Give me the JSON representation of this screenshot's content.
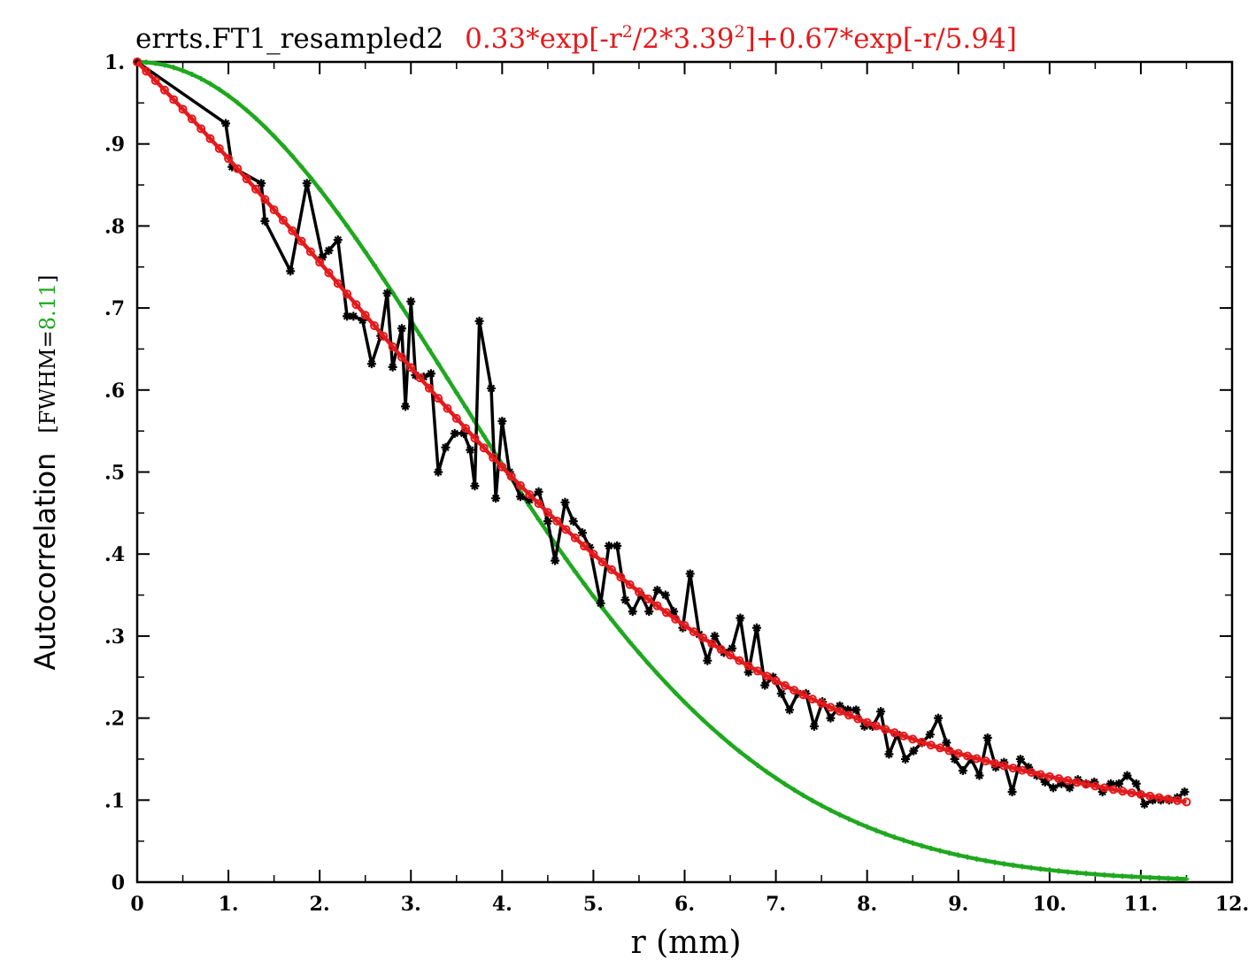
{
  "title": {
    "name": "errts.FT1_resampled2",
    "formula_a": "0.33*exp[-r",
    "formula_sup1": "2",
    "formula_b": "/2*3.39",
    "formula_sup2": "2",
    "formula_c": "]+0.67*exp[-r/5.94]"
  },
  "ylabel": {
    "main": "Autocorrelation",
    "fwhm_open": "[FWHM=",
    "fwhm_value": "8.11",
    "fwhm_close": "]"
  },
  "xlabel": "r  (mm)",
  "colors": {
    "data": "#000000",
    "model": "#e41a1c",
    "gaussian": "#1fa81f",
    "axis": "#000000"
  },
  "chart_data": {
    "type": "line",
    "xlim": [
      0,
      12
    ],
    "ylim": [
      0,
      1
    ],
    "x_ticks": [
      {
        "v": 0,
        "label": "0"
      },
      {
        "v": 1,
        "label": "1."
      },
      {
        "v": 2,
        "label": "2."
      },
      {
        "v": 3,
        "label": "3."
      },
      {
        "v": 4,
        "label": "4."
      },
      {
        "v": 5,
        "label": "5."
      },
      {
        "v": 6,
        "label": "6."
      },
      {
        "v": 7,
        "label": "7."
      },
      {
        "v": 8,
        "label": "8."
      },
      {
        "v": 9,
        "label": "9."
      },
      {
        "v": 10,
        "label": "10."
      },
      {
        "v": 11,
        "label": "11."
      },
      {
        "v": 12,
        "label": "12."
      }
    ],
    "y_ticks": [
      {
        "v": 0,
        "label": "0"
      },
      {
        "v": 0.1,
        "label": ".1"
      },
      {
        "v": 0.2,
        "label": ".2"
      },
      {
        "v": 0.3,
        "label": ".3"
      },
      {
        "v": 0.4,
        "label": ".4"
      },
      {
        "v": 0.5,
        "label": ".5"
      },
      {
        "v": 0.6,
        "label": ".6"
      },
      {
        "v": 0.7,
        "label": ".7"
      },
      {
        "v": 0.8,
        "label": ".8"
      },
      {
        "v": 0.9,
        "label": ".9"
      },
      {
        "v": 1.0,
        "label": "1."
      }
    ],
    "grid": false,
    "series": [
      {
        "color": "#000000",
        "marker": "star",
        "x": [
          0,
          0.97,
          1.04,
          1.36,
          1.4,
          1.68,
          1.86,
          2.03,
          2.1,
          2.2,
          2.3,
          2.37,
          2.47,
          2.57,
          2.67,
          2.74,
          2.8,
          2.9,
          2.94,
          3.0,
          3.05,
          3.14,
          3.22,
          3.3,
          3.38,
          3.48,
          3.58,
          3.65,
          3.7,
          3.75,
          3.88,
          3.93,
          4.0,
          4.08,
          4.2,
          4.3,
          4.4,
          4.5,
          4.58,
          4.69,
          4.78,
          4.88,
          4.96,
          5.08,
          5.17,
          5.26,
          5.35,
          5.43,
          5.52,
          5.61,
          5.7,
          5.79,
          5.88,
          5.98,
          6.06,
          6.16,
          6.25,
          6.33,
          6.43,
          6.52,
          6.61,
          6.7,
          6.79,
          6.88,
          6.97,
          7.06,
          7.15,
          7.24,
          7.33,
          7.42,
          7.51,
          7.6,
          7.7,
          7.79,
          7.88,
          7.97,
          8.06,
          8.15,
          8.24,
          8.33,
          8.42,
          8.51,
          8.6,
          8.69,
          8.78,
          8.87,
          8.96,
          9.05,
          9.14,
          9.23,
          9.32,
          9.41,
          9.5,
          9.59,
          9.68,
          9.77,
          9.86,
          9.95,
          10.04,
          10.13,
          10.22,
          10.31,
          10.4,
          10.49,
          10.58,
          10.67,
          10.76,
          10.85,
          10.95,
          11.04,
          11.13,
          11.22,
          11.31,
          11.4,
          11.48
        ],
        "y": [
          1.0,
          0.925,
          0.872,
          0.852,
          0.806,
          0.745,
          0.852,
          0.762,
          0.77,
          0.783,
          0.69,
          0.69,
          0.685,
          0.632,
          0.666,
          0.718,
          0.628,
          0.675,
          0.58,
          0.708,
          0.618,
          0.616,
          0.62,
          0.5,
          0.53,
          0.547,
          0.547,
          0.527,
          0.483,
          0.684,
          0.602,
          0.468,
          0.562,
          0.5,
          0.47,
          0.466,
          0.476,
          0.44,
          0.392,
          0.463,
          0.44,
          0.426,
          0.408,
          0.34,
          0.41,
          0.41,
          0.344,
          0.33,
          0.35,
          0.33,
          0.356,
          0.35,
          0.33,
          0.31,
          0.376,
          0.302,
          0.27,
          0.3,
          0.28,
          0.285,
          0.322,
          0.256,
          0.31,
          0.24,
          0.25,
          0.23,
          0.21,
          0.23,
          0.23,
          0.19,
          0.22,
          0.2,
          0.215,
          0.21,
          0.21,
          0.19,
          0.19,
          0.208,
          0.156,
          0.18,
          0.15,
          0.16,
          0.17,
          0.18,
          0.2,
          0.17,
          0.15,
          0.136,
          0.15,
          0.13,
          0.176,
          0.14,
          0.146,
          0.11,
          0.15,
          0.14,
          0.13,
          0.122,
          0.115,
          0.12,
          0.115,
          0.125,
          0.12,
          0.122,
          0.11,
          0.12,
          0.12,
          0.13,
          0.12,
          0.095,
          0.1,
          0.1,
          0.1,
          0.103,
          0.11
        ]
      },
      {
        "color": "#e41a1c",
        "marker": "circle",
        "formula": {
          "a1": 0.33,
          "sigma": 3.39,
          "a2": 0.67,
          "tau": 5.94
        },
        "x_range": [
          0,
          11.5
        ],
        "n_points": 116
      },
      {
        "color": "#1fa81f",
        "marker": "plus",
        "formula": {
          "a1": 1.0,
          "sigma": 3.4444
        },
        "x_range": [
          0,
          11.5
        ],
        "n_points": 116
      }
    ]
  }
}
